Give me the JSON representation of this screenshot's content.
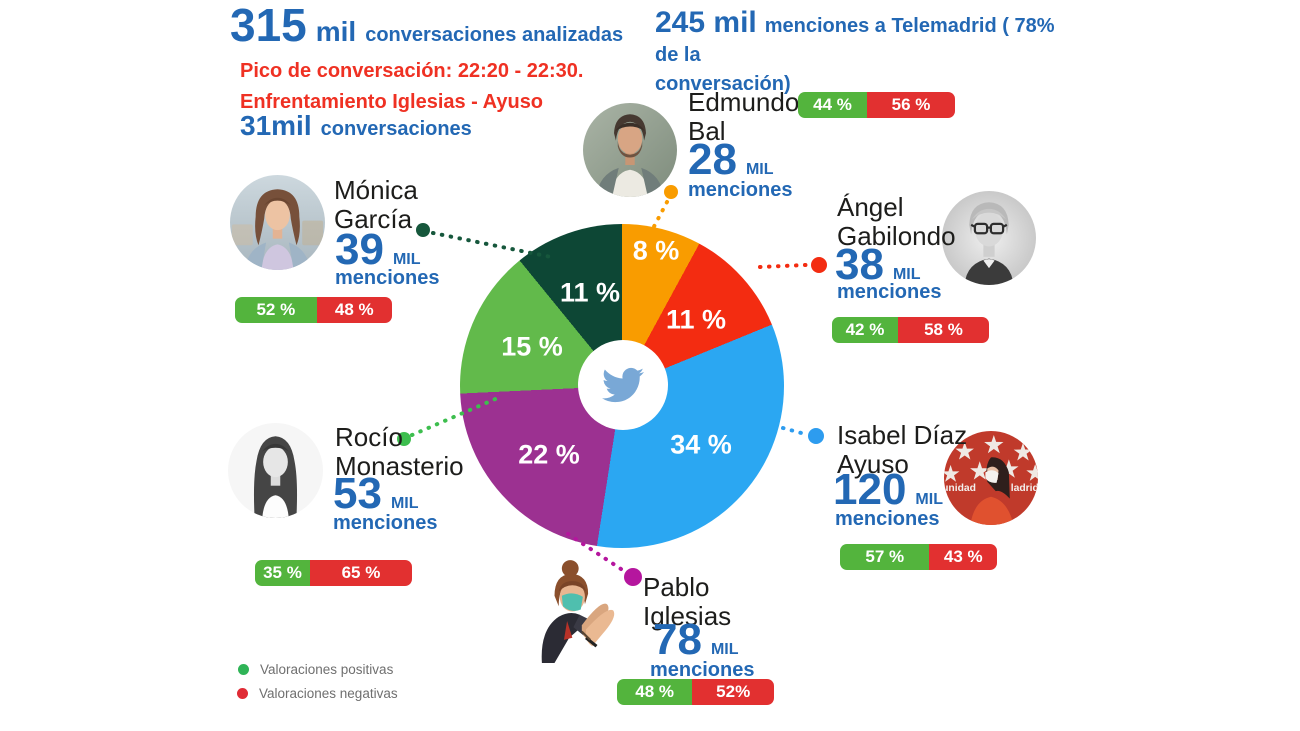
{
  "header": {
    "analyzed": {
      "value": "315",
      "unit": "mil",
      "label": "conversaciones analizadas"
    },
    "peak_line1": "Pico de conversación: 22:20 - 22:30.",
    "peak_line2": "Enfrentamiento Iglesias - Ayuso",
    "peak_stat": {
      "value": "31mil",
      "label": "conversaciones"
    },
    "telemadrid": {
      "value": "245 mil",
      "label_line1": "menciones a Telemadrid ( 78% de la",
      "label_line2": "conversación)"
    }
  },
  "chart_data": {
    "type": "pie",
    "unit": "% de la conversación",
    "center_icon": "twitter-bird",
    "slices": [
      {
        "candidate": "Edmundo Bal",
        "value": 8,
        "label": "8 %",
        "color": "#F99C00"
      },
      {
        "candidate": "Ángel Gabilondo",
        "value": 11,
        "label": "11 %",
        "color": "#F32C11"
      },
      {
        "candidate": "Isabel Díaz Ayuso",
        "value": 34,
        "label": "34 %",
        "color": "#2BA7F2"
      },
      {
        "candidate": "Pablo Iglesias",
        "value": 22,
        "label": "22 %",
        "color": "#9C3191"
      },
      {
        "candidate": "Rocío Monasterio",
        "value": 15,
        "label": "15 %",
        "color": "#62BA4B"
      },
      {
        "candidate": "Mónica García",
        "value": 11,
        "label": "11 %",
        "color": "#0D4735"
      }
    ],
    "valuation_bars": {
      "type": "stacked-bar",
      "series": [
        "Valoraciones positivas",
        "Valoraciones negativas"
      ],
      "rows": [
        {
          "candidate": "Mónica García",
          "positive": 52,
          "negative": 48
        },
        {
          "candidate": "Edmundo Bal",
          "positive": 44,
          "negative": 56
        },
        {
          "candidate": "Ángel Gabilondo",
          "positive": 42,
          "negative": 58
        },
        {
          "candidate": "Rocío Monasterio",
          "positive": 35,
          "negative": 65
        },
        {
          "candidate": "Isabel Díaz Ayuso",
          "positive": 57,
          "negative": 43
        },
        {
          "candidate": "Pablo Iglesias",
          "positive": 48,
          "negative": 52
        }
      ]
    }
  },
  "candidates": [
    {
      "name_line1": "Mónica",
      "name_line2": "García",
      "mentions": "39",
      "mentions_unit": "MIL",
      "mentions_word": "menciones",
      "positive_label": "52 %",
      "negative_label": "48 %",
      "positive_pct": 52,
      "negative_pct": 48,
      "connector_color": "#16573C"
    },
    {
      "name_line1": "Edmundo",
      "name_line2": "Bal",
      "mentions": "28",
      "mentions_unit": "MIL",
      "mentions_word": "menciones",
      "positive_label": "44 %",
      "negative_label": "56 %",
      "positive_pct": 44,
      "negative_pct": 56,
      "connector_color": "#F99C00"
    },
    {
      "name_line1": "Ángel",
      "name_line2": "Gabilondo",
      "mentions": "38",
      "mentions_unit": "MIL",
      "mentions_word": "menciones",
      "positive_label": "42 %",
      "negative_label": "58 %",
      "positive_pct": 42,
      "negative_pct": 58,
      "connector_color": "#F32C11"
    },
    {
      "name_line1": "Rocío",
      "name_line2": "Monasterio",
      "mentions": "53",
      "mentions_unit": "MIL",
      "mentions_word": "menciones",
      "positive_label": "35 %",
      "negative_label": "65 %",
      "positive_pct": 35,
      "negative_pct": 65,
      "connector_color": "#3DBE4E"
    },
    {
      "name_line1": "Isabel Díaz",
      "name_line2": "Ayuso",
      "mentions": "120",
      "mentions_unit": "MIL",
      "mentions_word": "menciones",
      "positive_label": "57 %",
      "negative_label": "43 %",
      "positive_pct": 57,
      "negative_pct": 43,
      "connector_color": "#2D9CEF"
    },
    {
      "name_line1": "Pablo",
      "name_line2": "Iglesias",
      "mentions": "78",
      "mentions_unit": "MIL",
      "mentions_word": "menciones",
      "positive_label": "48 %",
      "negative_label": "52%",
      "positive_pct": 48,
      "negative_pct": 52,
      "connector_color": "#B5169E"
    }
  ],
  "legend": {
    "positive_label": "Valoraciones positivas",
    "negative_label": "Valoraciones negativas",
    "positive_color": "#2FB457",
    "negative_color": "#E02B35"
  },
  "colors": {
    "text_blue": "#2368B4",
    "text_red": "#EF3123",
    "bar_green": "#53B43D",
    "bar_red": "#E23030",
    "name_text": "#1D1D1B",
    "legend_text": "#6F6F6F",
    "twitter_bird": "#79A8D6"
  }
}
